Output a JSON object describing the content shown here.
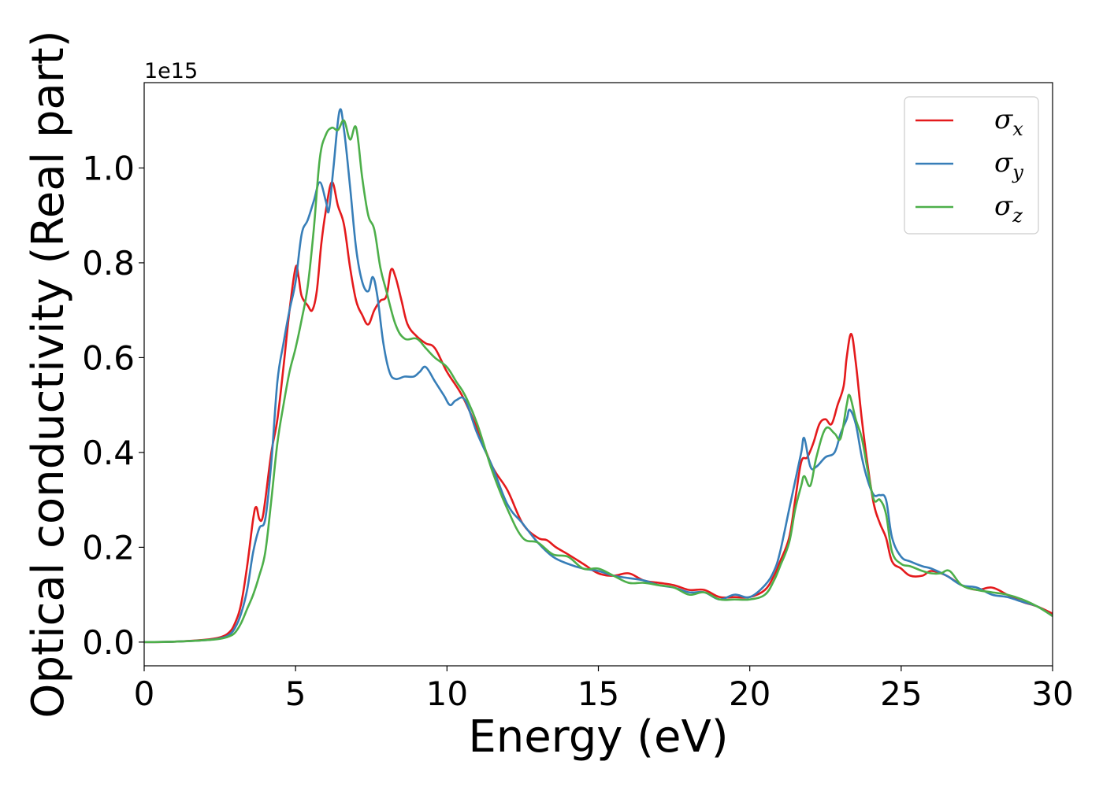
{
  "chart_data": {
    "type": "line",
    "xlabel": "Energy (eV)",
    "ylabel": "Optical conductivity (Real part)",
    "y_offset_label": "1e15",
    "xlim": [
      0,
      30
    ],
    "ylim": [
      -0.05,
      1.18
    ],
    "xticks": [
      0,
      5,
      10,
      15,
      20,
      25,
      30
    ],
    "xtick_labels": [
      "0",
      "5",
      "10",
      "15",
      "20",
      "25",
      "30"
    ],
    "yticks": [
      0.0,
      0.2,
      0.4,
      0.6,
      0.8,
      1.0
    ],
    "ytick_labels": [
      "0.0",
      "0.2",
      "0.4",
      "0.6",
      "0.8",
      "1.0"
    ],
    "grid": false,
    "legend_position": "top-right",
    "series": [
      {
        "name": "σx",
        "symbol": "σ",
        "subscript": "x",
        "color": "#e41a1c",
        "points": [
          [
            0,
            0
          ],
          [
            1,
            0.001
          ],
          [
            2,
            0.005
          ],
          [
            2.5,
            0.01
          ],
          [
            2.8,
            0.02
          ],
          [
            3.0,
            0.04
          ],
          [
            3.2,
            0.08
          ],
          [
            3.4,
            0.16
          ],
          [
            3.6,
            0.26
          ],
          [
            3.7,
            0.285
          ],
          [
            3.8,
            0.26
          ],
          [
            3.9,
            0.26
          ],
          [
            4.0,
            0.3
          ],
          [
            4.2,
            0.4
          ],
          [
            4.4,
            0.47
          ],
          [
            4.6,
            0.58
          ],
          [
            4.8,
            0.7
          ],
          [
            5.0,
            0.79
          ],
          [
            5.1,
            0.77
          ],
          [
            5.2,
            0.73
          ],
          [
            5.4,
            0.71
          ],
          [
            5.55,
            0.7
          ],
          [
            5.7,
            0.74
          ],
          [
            5.85,
            0.84
          ],
          [
            6.0,
            0.91
          ],
          [
            6.2,
            0.97
          ],
          [
            6.4,
            0.92
          ],
          [
            6.6,
            0.88
          ],
          [
            6.8,
            0.79
          ],
          [
            7.0,
            0.72
          ],
          [
            7.2,
            0.69
          ],
          [
            7.4,
            0.67
          ],
          [
            7.6,
            0.7
          ],
          [
            7.8,
            0.72
          ],
          [
            8.0,
            0.73
          ],
          [
            8.15,
            0.785
          ],
          [
            8.3,
            0.77
          ],
          [
            8.5,
            0.72
          ],
          [
            8.7,
            0.67
          ],
          [
            9.0,
            0.645
          ],
          [
            9.3,
            0.63
          ],
          [
            9.6,
            0.62
          ],
          [
            10.0,
            0.57
          ],
          [
            10.5,
            0.52
          ],
          [
            11.0,
            0.45
          ],
          [
            11.5,
            0.37
          ],
          [
            12.0,
            0.32
          ],
          [
            12.5,
            0.25
          ],
          [
            13.0,
            0.22
          ],
          [
            13.3,
            0.215
          ],
          [
            13.6,
            0.2
          ],
          [
            14.0,
            0.185
          ],
          [
            14.5,
            0.165
          ],
          [
            15.0,
            0.145
          ],
          [
            15.5,
            0.14
          ],
          [
            16.0,
            0.145
          ],
          [
            16.5,
            0.13
          ],
          [
            17.0,
            0.125
          ],
          [
            17.5,
            0.12
          ],
          [
            18.0,
            0.11
          ],
          [
            18.5,
            0.11
          ],
          [
            19.0,
            0.095
          ],
          [
            19.5,
            0.095
          ],
          [
            20.0,
            0.095
          ],
          [
            20.5,
            0.11
          ],
          [
            20.8,
            0.14
          ],
          [
            21.0,
            0.17
          ],
          [
            21.3,
            0.22
          ],
          [
            21.5,
            0.3
          ],
          [
            21.7,
            0.38
          ],
          [
            21.9,
            0.39
          ],
          [
            22.1,
            0.42
          ],
          [
            22.3,
            0.46
          ],
          [
            22.5,
            0.47
          ],
          [
            22.7,
            0.46
          ],
          [
            22.9,
            0.5
          ],
          [
            23.1,
            0.54
          ],
          [
            23.2,
            0.6
          ],
          [
            23.35,
            0.65
          ],
          [
            23.5,
            0.59
          ],
          [
            23.7,
            0.47
          ],
          [
            23.9,
            0.37
          ],
          [
            24.1,
            0.29
          ],
          [
            24.3,
            0.25
          ],
          [
            24.5,
            0.22
          ],
          [
            24.7,
            0.17
          ],
          [
            25.0,
            0.155
          ],
          [
            25.3,
            0.14
          ],
          [
            25.7,
            0.14
          ],
          [
            26.0,
            0.15
          ],
          [
            26.5,
            0.14
          ],
          [
            27.0,
            0.12
          ],
          [
            27.5,
            0.11
          ],
          [
            28.0,
            0.115
          ],
          [
            28.5,
            0.1
          ],
          [
            29.0,
            0.085
          ],
          [
            29.5,
            0.075
          ],
          [
            30.0,
            0.06
          ]
        ]
      },
      {
        "name": "σy",
        "symbol": "σ",
        "subscript": "y",
        "color": "#377eb8",
        "points": [
          [
            0,
            0
          ],
          [
            1,
            0.001
          ],
          [
            2,
            0.004
          ],
          [
            2.5,
            0.008
          ],
          [
            2.8,
            0.015
          ],
          [
            3.0,
            0.03
          ],
          [
            3.2,
            0.06
          ],
          [
            3.4,
            0.11
          ],
          [
            3.6,
            0.19
          ],
          [
            3.8,
            0.24
          ],
          [
            4.0,
            0.26
          ],
          [
            4.2,
            0.38
          ],
          [
            4.4,
            0.55
          ],
          [
            4.6,
            0.63
          ],
          [
            4.8,
            0.7
          ],
          [
            5.0,
            0.76
          ],
          [
            5.2,
            0.86
          ],
          [
            5.4,
            0.89
          ],
          [
            5.6,
            0.93
          ],
          [
            5.8,
            0.97
          ],
          [
            6.0,
            0.93
          ],
          [
            6.1,
            0.91
          ],
          [
            6.25,
            1.0
          ],
          [
            6.45,
            1.12
          ],
          [
            6.6,
            1.08
          ],
          [
            6.8,
            0.96
          ],
          [
            7.0,
            0.83
          ],
          [
            7.2,
            0.76
          ],
          [
            7.4,
            0.74
          ],
          [
            7.55,
            0.77
          ],
          [
            7.7,
            0.73
          ],
          [
            7.9,
            0.63
          ],
          [
            8.1,
            0.57
          ],
          [
            8.3,
            0.555
          ],
          [
            8.6,
            0.56
          ],
          [
            8.9,
            0.56
          ],
          [
            9.1,
            0.57
          ],
          [
            9.3,
            0.58
          ],
          [
            9.6,
            0.55
          ],
          [
            9.9,
            0.52
          ],
          [
            10.1,
            0.5
          ],
          [
            10.3,
            0.51
          ],
          [
            10.6,
            0.51
          ],
          [
            11.0,
            0.44
          ],
          [
            11.5,
            0.37
          ],
          [
            12.0,
            0.29
          ],
          [
            12.5,
            0.25
          ],
          [
            13.0,
            0.21
          ],
          [
            13.5,
            0.18
          ],
          [
            14.0,
            0.165
          ],
          [
            14.5,
            0.155
          ],
          [
            15.0,
            0.15
          ],
          [
            15.5,
            0.14
          ],
          [
            16.0,
            0.135
          ],
          [
            16.5,
            0.13
          ],
          [
            17.0,
            0.12
          ],
          [
            17.5,
            0.115
          ],
          [
            18.0,
            0.105
          ],
          [
            18.5,
            0.105
          ],
          [
            19.0,
            0.09
          ],
          [
            19.5,
            0.1
          ],
          [
            20.0,
            0.095
          ],
          [
            20.5,
            0.12
          ],
          [
            20.8,
            0.15
          ],
          [
            21.0,
            0.19
          ],
          [
            21.3,
            0.28
          ],
          [
            21.5,
            0.34
          ],
          [
            21.7,
            0.4
          ],
          [
            21.8,
            0.43
          ],
          [
            22.0,
            0.37
          ],
          [
            22.2,
            0.37
          ],
          [
            22.5,
            0.39
          ],
          [
            22.8,
            0.4
          ],
          [
            23.0,
            0.44
          ],
          [
            23.2,
            0.47
          ],
          [
            23.3,
            0.49
          ],
          [
            23.5,
            0.46
          ],
          [
            23.7,
            0.39
          ],
          [
            23.9,
            0.34
          ],
          [
            24.1,
            0.31
          ],
          [
            24.3,
            0.31
          ],
          [
            24.5,
            0.3
          ],
          [
            24.7,
            0.22
          ],
          [
            25.0,
            0.18
          ],
          [
            25.3,
            0.17
          ],
          [
            25.7,
            0.16
          ],
          [
            26.0,
            0.155
          ],
          [
            26.5,
            0.14
          ],
          [
            27.0,
            0.12
          ],
          [
            27.5,
            0.115
          ],
          [
            28.0,
            0.1
          ],
          [
            28.5,
            0.095
          ],
          [
            29.0,
            0.085
          ],
          [
            29.5,
            0.075
          ],
          [
            30.0,
            0.055
          ]
        ]
      },
      {
        "name": "σz",
        "symbol": "σ",
        "subscript": "z",
        "color": "#4daf4a",
        "points": [
          [
            0,
            0
          ],
          [
            1,
            0.001
          ],
          [
            2,
            0.004
          ],
          [
            2.5,
            0.007
          ],
          [
            2.8,
            0.012
          ],
          [
            3.0,
            0.02
          ],
          [
            3.2,
            0.04
          ],
          [
            3.4,
            0.07
          ],
          [
            3.6,
            0.1
          ],
          [
            3.8,
            0.14
          ],
          [
            4.0,
            0.19
          ],
          [
            4.2,
            0.3
          ],
          [
            4.4,
            0.42
          ],
          [
            4.6,
            0.5
          ],
          [
            4.8,
            0.57
          ],
          [
            5.0,
            0.62
          ],
          [
            5.2,
            0.68
          ],
          [
            5.4,
            0.75
          ],
          [
            5.6,
            0.87
          ],
          [
            5.8,
            1.02
          ],
          [
            6.0,
            1.07
          ],
          [
            6.2,
            1.085
          ],
          [
            6.4,
            1.08
          ],
          [
            6.6,
            1.1
          ],
          [
            6.8,
            1.06
          ],
          [
            7.0,
            1.085
          ],
          [
            7.2,
            0.98
          ],
          [
            7.4,
            0.9
          ],
          [
            7.6,
            0.87
          ],
          [
            7.8,
            0.79
          ],
          [
            8.0,
            0.74
          ],
          [
            8.3,
            0.67
          ],
          [
            8.6,
            0.64
          ],
          [
            9.0,
            0.64
          ],
          [
            9.3,
            0.62
          ],
          [
            9.6,
            0.6
          ],
          [
            10.0,
            0.58
          ],
          [
            10.3,
            0.55
          ],
          [
            10.6,
            0.52
          ],
          [
            11.0,
            0.46
          ],
          [
            11.5,
            0.36
          ],
          [
            12.0,
            0.28
          ],
          [
            12.5,
            0.22
          ],
          [
            13.0,
            0.21
          ],
          [
            13.5,
            0.185
          ],
          [
            14.0,
            0.18
          ],
          [
            14.5,
            0.155
          ],
          [
            15.0,
            0.155
          ],
          [
            15.5,
            0.14
          ],
          [
            16.0,
            0.125
          ],
          [
            16.5,
            0.125
          ],
          [
            17.0,
            0.12
          ],
          [
            17.5,
            0.115
          ],
          [
            18.0,
            0.1
          ],
          [
            18.5,
            0.105
          ],
          [
            19.0,
            0.09
          ],
          [
            19.5,
            0.09
          ],
          [
            20.0,
            0.09
          ],
          [
            20.5,
            0.1
          ],
          [
            20.8,
            0.13
          ],
          [
            21.0,
            0.16
          ],
          [
            21.3,
            0.21
          ],
          [
            21.5,
            0.28
          ],
          [
            21.7,
            0.33
          ],
          [
            21.8,
            0.35
          ],
          [
            22.0,
            0.33
          ],
          [
            22.2,
            0.39
          ],
          [
            22.5,
            0.45
          ],
          [
            22.8,
            0.44
          ],
          [
            23.0,
            0.43
          ],
          [
            23.2,
            0.5
          ],
          [
            23.3,
            0.52
          ],
          [
            23.5,
            0.47
          ],
          [
            23.7,
            0.43
          ],
          [
            23.9,
            0.36
          ],
          [
            24.1,
            0.3
          ],
          [
            24.3,
            0.3
          ],
          [
            24.5,
            0.27
          ],
          [
            24.7,
            0.19
          ],
          [
            25.0,
            0.165
          ],
          [
            25.3,
            0.16
          ],
          [
            25.7,
            0.15
          ],
          [
            26.0,
            0.145
          ],
          [
            26.3,
            0.145
          ],
          [
            26.6,
            0.15
          ],
          [
            27.0,
            0.12
          ],
          [
            27.5,
            0.11
          ],
          [
            28.0,
            0.105
          ],
          [
            28.5,
            0.1
          ],
          [
            29.0,
            0.09
          ],
          [
            29.5,
            0.075
          ],
          [
            30.0,
            0.055
          ]
        ]
      }
    ]
  }
}
